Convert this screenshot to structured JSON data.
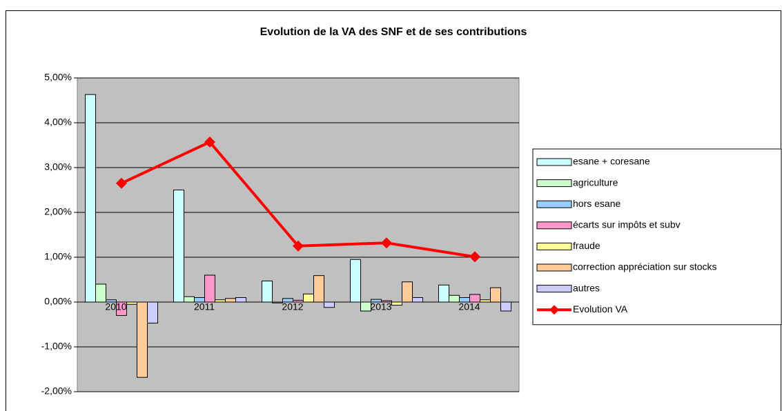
{
  "chart_data": {
    "type": "bar+line",
    "title": "Evolution de la VA des SNF et de ses contributions",
    "categories": [
      "2010",
      "2011",
      "2012",
      "2013",
      "2014"
    ],
    "series": [
      {
        "name": "esane + coresane",
        "type": "bar",
        "color": "#ccffff",
        "values": [
          4.63,
          2.5,
          0.47,
          0.95,
          0.38
        ]
      },
      {
        "name": "agriculture",
        "type": "bar",
        "color": "#ccffcc",
        "values": [
          0.4,
          0.12,
          -0.02,
          -0.2,
          0.15
        ]
      },
      {
        "name": "hors esane",
        "type": "bar",
        "color": "#99ccff",
        "values": [
          0.05,
          0.1,
          0.08,
          0.06,
          0.1
        ]
      },
      {
        "name": "écarts sur impôts et subv",
        "type": "bar",
        "color": "#ff99cc",
        "values": [
          -0.3,
          0.6,
          0.04,
          0.03,
          0.17
        ]
      },
      {
        "name": "fraude",
        "type": "bar",
        "color": "#ffff99",
        "values": [
          -0.05,
          0.05,
          0.18,
          -0.07,
          0.05
        ]
      },
      {
        "name": "correction appréciation sur stocks",
        "type": "bar",
        "color": "#ffcc99",
        "values": [
          -1.68,
          0.08,
          0.59,
          0.45,
          0.32
        ]
      },
      {
        "name": "autres",
        "type": "bar",
        "color": "#ccccff",
        "values": [
          -0.47,
          0.1,
          -0.12,
          0.1,
          -0.2
        ]
      },
      {
        "name": "Evolution VA",
        "type": "line",
        "color": "#ff0000",
        "values": [
          2.65,
          3.57,
          1.25,
          1.32,
          1.01
        ]
      }
    ],
    "ylim": [
      -2,
      5
    ],
    "yticks": [
      {
        "value": -2,
        "label": "-2,00%"
      },
      {
        "value": -1,
        "label": "-1,00%"
      },
      {
        "value": 0,
        "label": "0,00%"
      },
      {
        "value": 1,
        "label": "1,00%"
      },
      {
        "value": 2,
        "label": "2,00%"
      },
      {
        "value": 3,
        "label": "3,00%"
      },
      {
        "value": 4,
        "label": "4,00%"
      },
      {
        "value": 5,
        "label": "5,00%"
      }
    ],
    "grid": true,
    "legend": "right"
  }
}
